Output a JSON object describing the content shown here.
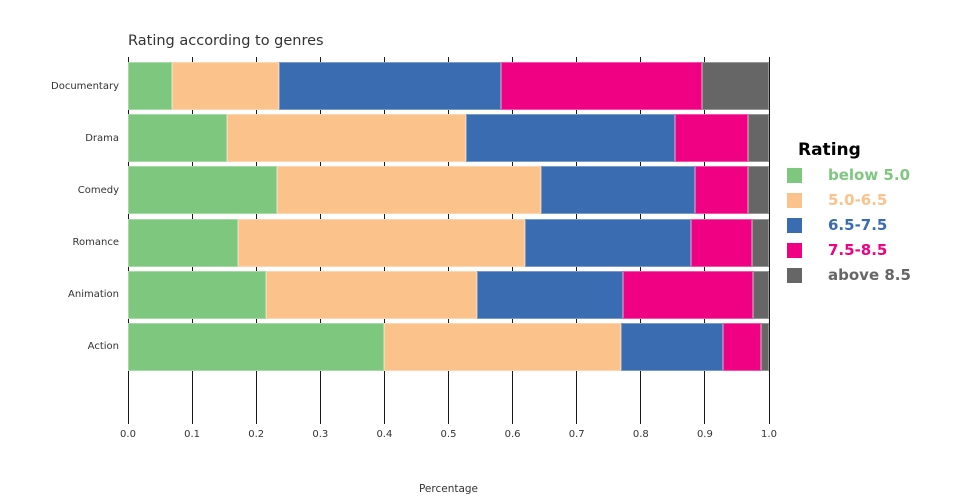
{
  "chart_data": {
    "type": "bar",
    "orientation": "horizontal",
    "stacked": true,
    "title": "Rating according to genres",
    "xlabel": "Percentage",
    "ylabel": "",
    "xlim": [
      0,
      1
    ],
    "xtick_labels": [
      "0.0",
      "0.1",
      "0.2",
      "0.3",
      "0.4",
      "0.5",
      "0.6",
      "0.7",
      "0.8",
      "0.9",
      "1.0"
    ],
    "grid": "vertical-ticks-through-gaps",
    "categories": [
      "Documentary",
      "Drama",
      "Comedy",
      "Romance",
      "Animation",
      "Action"
    ],
    "legend_title": "Rating",
    "legend_position": "right",
    "series": [
      {
        "name": "below 5.0",
        "color": "#7EC77E",
        "values": [
          0.068,
          0.155,
          0.232,
          0.171,
          0.215,
          0.399
        ]
      },
      {
        "name": "5.0-6.5",
        "color": "#FBC28C",
        "values": [
          0.167,
          0.372,
          0.412,
          0.448,
          0.329,
          0.37
        ]
      },
      {
        "name": "6.5-7.5",
        "color": "#3A6CB1",
        "values": [
          0.347,
          0.327,
          0.24,
          0.259,
          0.229,
          0.16
        ]
      },
      {
        "name": "7.5-8.5",
        "color": "#F00082",
        "values": [
          0.313,
          0.113,
          0.083,
          0.096,
          0.202,
          0.059
        ]
      },
      {
        "name": "above 8.5",
        "color": "#666666",
        "values": [
          0.105,
          0.033,
          0.033,
          0.026,
          0.025,
          0.012
        ]
      }
    ],
    "colors": {
      "axis_tick": "#191919",
      "text": "#333333",
      "legend_title_text": "#000000"
    }
  }
}
